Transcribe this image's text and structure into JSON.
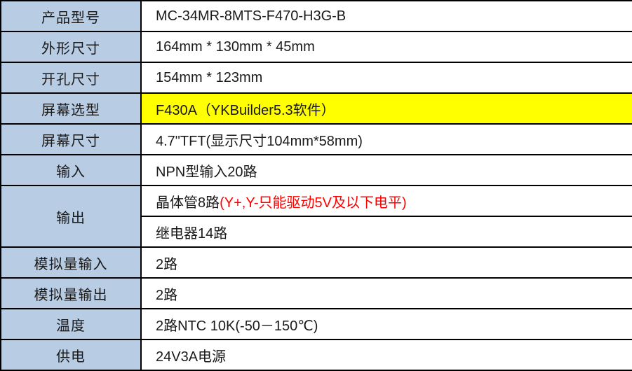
{
  "colors": {
    "label_bg": "#b8cce4",
    "highlight_bg": "#ffff00",
    "warning_text": "#ff0000",
    "border": "#000000",
    "value_bg": "#ffffff"
  },
  "rows": [
    {
      "label": "产品型号",
      "value": "MC-34MR-8MTS-F470-H3G-B"
    },
    {
      "label": "外形尺寸",
      "value": "164mm * 130mm * 45mm"
    },
    {
      "label": "开孔尺寸",
      "value": "154mm * 123mm"
    },
    {
      "label": "屏幕选型",
      "value": "F430A（YKBuilder5.3软件）",
      "highlight": true
    },
    {
      "label": "屏幕尺寸",
      "value": "4.7\"TFT(显示尺寸104mm*58mm)"
    },
    {
      "label": "输入",
      "value": "NPN型输入20路"
    },
    {
      "label": "输出",
      "value_transistor": "晶体管8路",
      "value_transistor_warning": "(Y+,Y-只能驱动5V及以下电平)",
      "value_relay": "继电器14路"
    },
    {
      "label": "模拟量输入",
      "value": "2路"
    },
    {
      "label": "模拟量输出",
      "value": "2路"
    },
    {
      "label": "温度",
      "value": "2路NTC 10K(-50－150℃)"
    },
    {
      "label": "供电",
      "value": "24V3A电源"
    }
  ]
}
